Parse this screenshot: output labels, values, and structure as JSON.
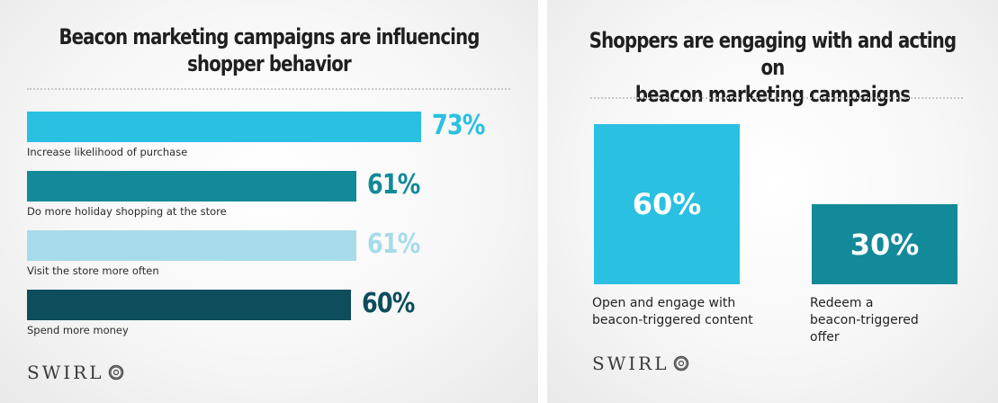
{
  "left_panel": {
    "title_line1": "Beacon marketing campaigns are influencing",
    "title_line2": "shopper behavior",
    "logo_text": "SWIRL",
    "logo_icon": "swirl-icon"
  },
  "right_panel": {
    "title_line1": "Shoppers are engaging with and acting on",
    "title_line2": "beacon marketing campaigns",
    "logo_text": "SWIRL",
    "logo_icon": "swirl-icon"
  },
  "chart_data": [
    {
      "type": "bar",
      "orientation": "horizontal",
      "title": "Beacon marketing campaigns are influencing shopper behavior",
      "categories": [
        "Increase likelihood of purchase",
        "Do more holiday shopping at the store",
        "Visit the store more often",
        "Spend more money"
      ],
      "values": [
        73,
        61,
        61,
        60
      ],
      "value_labels": [
        "73%",
        "61%",
        "61%",
        "60%"
      ],
      "colors": [
        "#29c0e2",
        "#138a99",
        "#a6dcea",
        "#0d4d5c"
      ],
      "xlim": [
        0,
        73
      ],
      "grid": false,
      "legend": "none"
    },
    {
      "type": "bar",
      "orientation": "vertical",
      "title": "Shoppers are engaging with and acting on beacon marketing campaigns",
      "categories": [
        "Open and engage with beacon-triggered content",
        "Redeem a beacon-triggered offer"
      ],
      "category_lines": [
        [
          "Open and engage with",
          "beacon-triggered content"
        ],
        [
          "Redeem a",
          "beacon-triggered",
          "offer"
        ]
      ],
      "values": [
        60,
        30
      ],
      "value_labels": [
        "60%",
        "30%"
      ],
      "colors": [
        "#29c0e2",
        "#138a99"
      ],
      "ylim": [
        0,
        60
      ],
      "grid": false,
      "legend": "none"
    }
  ]
}
